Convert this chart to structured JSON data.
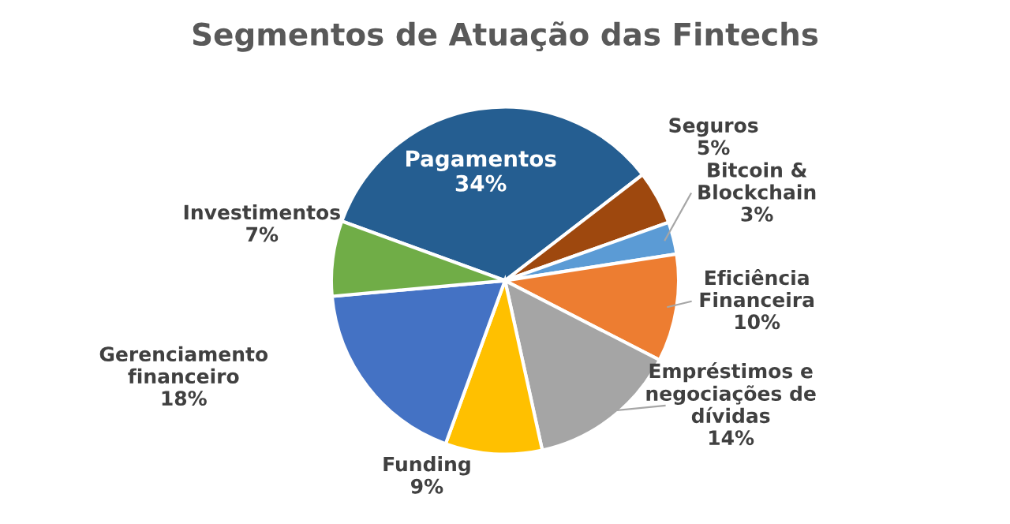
{
  "chart_data": {
    "type": "pie",
    "title": "Segmentos de Atuação das Fintechs",
    "categories": [
      "Pagamentos",
      "Seguros",
      "Bitcoin &\nBlockchain",
      "Eficiência\nFinanceira",
      "Empréstimos e\nnegociações de\ndívidas",
      "Funding",
      "Gerenciamento\nfinanceiro",
      "Investimentos"
    ],
    "values": [
      34,
      5,
      3,
      10,
      14,
      9,
      18,
      7
    ],
    "colors": [
      "#255e91",
      "#9e480e",
      "#5b9bd5",
      "#ed7d31",
      "#a5a5a5",
      "#ffc000",
      "#4472c4",
      "#70ad47"
    ],
    "value_labels": [
      "34%",
      "5%",
      "3%",
      "10%",
      "14%",
      "9%",
      "18%",
      "7%"
    ],
    "legend": false
  }
}
